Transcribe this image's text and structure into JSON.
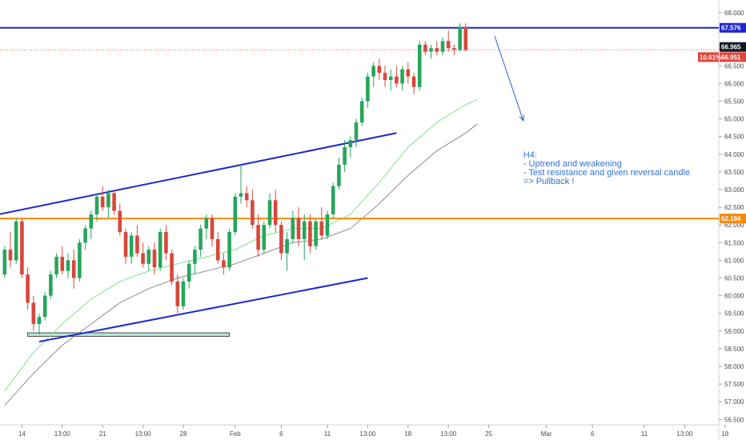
{
  "chart_data": {
    "type": "candlestick",
    "y_axis": {
      "min": 56.5,
      "max": 68.0,
      "ticks": [
        "56.500",
        "57.000",
        "57.500",
        "58.000",
        "58.500",
        "59.000",
        "59.500",
        "60.000",
        "60.500",
        "61.000",
        "61.500",
        "62.000",
        "62.500",
        "63.000",
        "63.500",
        "64.000",
        "64.500",
        "65.000",
        "65.500",
        "66.000",
        "66.500",
        "67.000",
        "67.500",
        "68.000"
      ]
    },
    "x_axis": {
      "ticks": [
        {
          "label": "14",
          "bar": 3
        },
        {
          "label": "13:00",
          "bar": 10
        },
        {
          "label": "21",
          "bar": 17
        },
        {
          "label": "13:00",
          "bar": 24
        },
        {
          "label": "28",
          "bar": 31
        },
        {
          "label": "Feb",
          "bar": 40
        },
        {
          "label": "6",
          "bar": 48
        },
        {
          "label": "11",
          "bar": 56
        },
        {
          "label": "13:00",
          "bar": 63
        },
        {
          "label": "18",
          "bar": 70
        },
        {
          "label": "13:00",
          "bar": 77
        },
        {
          "label": "25",
          "bar": 84
        },
        {
          "label": "Mar",
          "bar": 94
        },
        {
          "label": "6",
          "bar": 102
        },
        {
          "label": "11",
          "bar": 111
        },
        {
          "label": "13:00",
          "bar": 118
        },
        {
          "label": "18",
          "bar": 125
        }
      ]
    },
    "candles": [
      [
        60.6,
        61.4,
        60.5,
        61.3
      ],
      [
        61.3,
        61.8,
        60.8,
        61.0
      ],
      [
        61.0,
        62.2,
        60.9,
        62.1
      ],
      [
        62.1,
        62.2,
        60.5,
        60.6
      ],
      [
        60.6,
        60.8,
        59.6,
        59.8
      ],
      [
        59.8,
        60.0,
        59.0,
        59.2
      ],
      [
        59.2,
        59.5,
        58.9,
        59.4
      ],
      [
        59.4,
        60.1,
        59.3,
        60.0
      ],
      [
        60.0,
        60.7,
        59.9,
        60.6
      ],
      [
        60.6,
        61.2,
        60.5,
        61.1
      ],
      [
        61.1,
        61.4,
        60.6,
        60.7
      ],
      [
        60.7,
        61.2,
        60.5,
        61.0
      ],
      [
        61.0,
        61.3,
        60.2,
        60.5
      ],
      [
        60.5,
        61.6,
        60.4,
        61.5
      ],
      [
        61.5,
        62.0,
        61.3,
        61.9
      ],
      [
        61.9,
        62.4,
        61.6,
        62.3
      ],
      [
        62.3,
        62.9,
        62.1,
        62.8
      ],
      [
        62.8,
        63.1,
        62.4,
        62.5
      ],
      [
        62.5,
        63.0,
        62.2,
        62.9
      ],
      [
        62.9,
        63.0,
        62.3,
        62.4
      ],
      [
        62.4,
        62.6,
        61.7,
        61.8
      ],
      [
        61.8,
        61.9,
        60.9,
        61.1
      ],
      [
        61.1,
        61.8,
        60.9,
        61.7
      ],
      [
        61.7,
        62.0,
        61.1,
        61.2
      ],
      [
        61.2,
        61.5,
        60.8,
        60.9
      ],
      [
        60.9,
        61.4,
        60.7,
        61.3
      ],
      [
        61.3,
        61.5,
        60.6,
        60.8
      ],
      [
        60.8,
        61.9,
        60.7,
        61.8
      ],
      [
        61.8,
        62.0,
        61.0,
        61.2
      ],
      [
        61.2,
        61.3,
        60.3,
        60.4
      ],
      [
        60.4,
        60.6,
        59.5,
        59.7
      ],
      [
        59.7,
        60.5,
        59.6,
        60.4
      ],
      [
        60.4,
        61.0,
        60.2,
        60.9
      ],
      [
        60.9,
        61.4,
        60.6,
        61.3
      ],
      [
        61.3,
        62.0,
        61.1,
        61.9
      ],
      [
        61.9,
        62.3,
        61.6,
        62.2
      ],
      [
        62.2,
        62.3,
        61.4,
        61.6
      ],
      [
        61.6,
        61.8,
        60.9,
        61.0
      ],
      [
        61.0,
        61.2,
        60.6,
        60.8
      ],
      [
        60.8,
        61.9,
        60.7,
        61.8
      ],
      [
        61.8,
        62.9,
        61.7,
        62.8
      ],
      [
        62.8,
        63.7,
        62.6,
        62.9
      ],
      [
        62.9,
        63.1,
        62.5,
        62.7
      ],
      [
        62.7,
        63.0,
        61.9,
        62.0
      ],
      [
        62.0,
        62.3,
        61.1,
        61.3
      ],
      [
        61.3,
        62.1,
        61.2,
        62.0
      ],
      [
        62.0,
        62.9,
        61.9,
        62.7
      ],
      [
        62.7,
        63.0,
        61.8,
        62.0
      ],
      [
        62.0,
        62.1,
        61.0,
        61.2
      ],
      [
        61.2,
        61.8,
        60.7,
        61.6
      ],
      [
        61.6,
        62.4,
        61.5,
        62.2
      ],
      [
        62.2,
        62.5,
        61.4,
        61.6
      ],
      [
        61.6,
        62.3,
        61.0,
        62.1
      ],
      [
        62.1,
        62.3,
        61.2,
        61.4
      ],
      [
        61.4,
        62.2,
        61.3,
        62.1
      ],
      [
        62.1,
        62.5,
        61.6,
        61.7
      ],
      [
        61.7,
        62.4,
        61.6,
        62.3
      ],
      [
        62.3,
        63.2,
        62.2,
        63.1
      ],
      [
        63.1,
        63.9,
        63.0,
        63.7
      ],
      [
        63.7,
        64.4,
        63.5,
        64.2
      ],
      [
        64.2,
        64.5,
        63.9,
        64.4
      ],
      [
        64.4,
        65.0,
        64.2,
        64.9
      ],
      [
        64.9,
        65.6,
        64.8,
        65.5
      ],
      [
        65.5,
        66.3,
        65.3,
        66.2
      ],
      [
        66.2,
        66.6,
        65.9,
        66.5
      ],
      [
        66.5,
        66.7,
        66.1,
        66.3
      ],
      [
        66.3,
        66.5,
        65.9,
        66.1
      ],
      [
        66.1,
        66.4,
        65.8,
        66.2
      ],
      [
        66.2,
        66.5,
        65.9,
        66.0
      ],
      [
        66.0,
        66.5,
        65.8,
        66.4
      ],
      [
        66.4,
        66.6,
        66.0,
        66.2
      ],
      [
        66.2,
        66.3,
        65.7,
        65.9
      ],
      [
        65.9,
        67.2,
        65.8,
        67.1
      ],
      [
        67.1,
        67.2,
        66.8,
        66.9
      ],
      [
        66.9,
        67.1,
        66.7,
        67.0
      ],
      [
        67.0,
        67.2,
        66.8,
        66.9
      ],
      [
        66.9,
        67.3,
        66.8,
        67.2
      ],
      [
        67.2,
        67.5,
        66.9,
        67.0
      ],
      [
        67.0,
        67.1,
        66.8,
        66.95
      ],
      [
        66.95,
        67.7,
        66.9,
        67.6
      ],
      [
        67.6,
        67.7,
        66.9,
        66.95
      ]
    ],
    "ema_green": [
      [
        0,
        57.3
      ],
      [
        5,
        58.4
      ],
      [
        10,
        59.2
      ],
      [
        15,
        59.9
      ],
      [
        20,
        60.4
      ],
      [
        25,
        60.7
      ],
      [
        30,
        60.9
      ],
      [
        35,
        61.1
      ],
      [
        40,
        61.3
      ],
      [
        45,
        61.7
      ],
      [
        50,
        61.9
      ],
      [
        55,
        61.9
      ],
      [
        60,
        62.3
      ],
      [
        65,
        63.2
      ],
      [
        70,
        64.2
      ],
      [
        75,
        64.9
      ],
      [
        80,
        65.4
      ],
      [
        82,
        65.55
      ]
    ],
    "ema_gray": [
      [
        0,
        56.9
      ],
      [
        5,
        57.8
      ],
      [
        10,
        58.6
      ],
      [
        15,
        59.2
      ],
      [
        20,
        59.8
      ],
      [
        25,
        60.2
      ],
      [
        30,
        60.5
      ],
      [
        35,
        60.7
      ],
      [
        40,
        60.9
      ],
      [
        45,
        61.2
      ],
      [
        50,
        61.5
      ],
      [
        55,
        61.6
      ],
      [
        60,
        61.9
      ],
      [
        65,
        62.6
      ],
      [
        70,
        63.4
      ],
      [
        75,
        64.1
      ],
      [
        80,
        64.6
      ],
      [
        82,
        64.85
      ]
    ],
    "channel_upper": {
      "from": [
        -1,
        62.3
      ],
      "to": [
        68,
        64.6
      ]
    },
    "channel_lower": {
      "from": [
        6,
        58.7
      ],
      "to": [
        63,
        60.5
      ]
    },
    "support_zone": {
      "from_bar": 4,
      "to_bar": 39,
      "low": 58.85,
      "high": 58.95
    },
    "projection_arrow": {
      "from": [
        85,
        67.35
      ],
      "to": [
        90,
        64.95
      ]
    },
    "resistance_line": {
      "value": 67.576,
      "label": "67.576",
      "color": "#1d27d1"
    },
    "level_line": {
      "value": 62.184,
      "label": "62.184",
      "color": "#f58a0b"
    },
    "price_lines": [
      {
        "value": 66.965,
        "label": "66.965",
        "color": "#131722"
      },
      {
        "value": 66.951,
        "label": "66.951",
        "color": "#e0453c"
      }
    ],
    "percent_tag": {
      "label": "10.61%",
      "color": "#e0453c"
    },
    "annotation": {
      "lines": [
        "H4:",
        "- Uptrend and weakening",
        "- Test resistance and given reversal candle",
        "=> Pullback !"
      ],
      "anchor_bar": 90,
      "anchor_value": 63.9
    },
    "colors": {
      "up": "#26a65b",
      "down": "#d8473c",
      "ema_fast": "#7be38a",
      "ema_slow": "#8c8c8c",
      "channel": "#1d27d1",
      "zone_fill": "#b6e7d8",
      "zone_stroke": "#4a4a4a"
    }
  }
}
